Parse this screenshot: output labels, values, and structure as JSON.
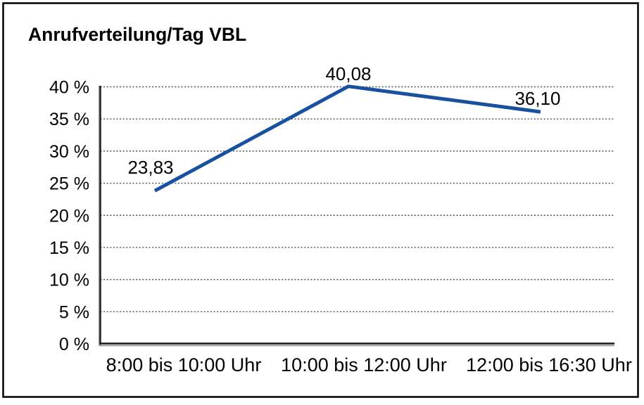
{
  "window": {
    "background": "#ffffff",
    "border_color": "#000000"
  },
  "chart_data": {
    "type": "line",
    "title": "Anrufverteilung/Tag VBL",
    "categories": [
      "8:00 bis 10:00 Uhr",
      "10:00 bis 12:00 Uhr",
      "12:00 bis 16:30 Uhr"
    ],
    "series": [
      {
        "name": "Anrufverteilung/Tag VBL",
        "values": [
          23.83,
          40.08,
          36.1
        ]
      }
    ],
    "point_labels": [
      "23,83",
      "40,08",
      "36,10"
    ],
    "xlabel": "",
    "ylabel": "",
    "ylim": [
      0,
      40
    ],
    "y_tick_values": [
      0,
      5,
      10,
      15,
      20,
      25,
      30,
      35,
      40
    ],
    "y_tick_labels": [
      "0 %",
      "5 %",
      "10 %",
      "15 %",
      "20 %",
      "25 %",
      "30 %",
      "35 %",
      "40 %"
    ],
    "grid": "horizontal-dotted",
    "legend": "none",
    "line_color": "#1751A0",
    "grid_color": "#4d4d4d",
    "axis_color": "#1a1a1a",
    "axis_shadow_color": "#9e9e9e",
    "text_color": "#000000"
  }
}
